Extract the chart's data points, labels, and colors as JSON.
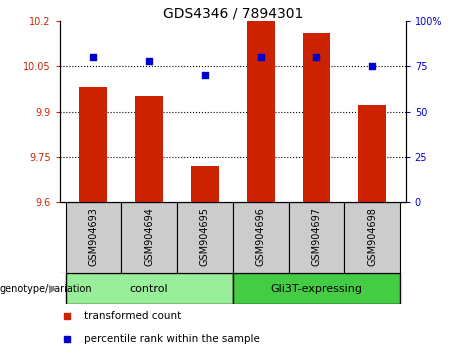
{
  "title": "GDS4346 / 7894301",
  "samples": [
    "GSM904693",
    "GSM904694",
    "GSM904695",
    "GSM904696",
    "GSM904697",
    "GSM904698"
  ],
  "transformed_counts": [
    9.98,
    9.95,
    9.72,
    10.2,
    10.16,
    9.92
  ],
  "percentile_ranks": [
    80,
    78,
    70,
    80,
    80,
    75
  ],
  "ylim_left": [
    9.6,
    10.2
  ],
  "ylim_right": [
    0,
    100
  ],
  "yticks_left": [
    9.6,
    9.75,
    9.9,
    10.05,
    10.2
  ],
  "ytick_labels_left": [
    "9.6",
    "9.75",
    "9.9",
    "10.05",
    "10.2"
  ],
  "yticks_right": [
    0,
    25,
    50,
    75,
    100
  ],
  "ytick_labels_right": [
    "0",
    "25",
    "50",
    "75",
    "100%"
  ],
  "grid_lines": [
    10.05,
    9.9,
    9.75
  ],
  "bar_color": "#CC2200",
  "dot_color": "#0000CC",
  "bar_width": 0.5,
  "groups": [
    {
      "label": "control",
      "indices": [
        0,
        1,
        2
      ],
      "color": "#99ee99"
    },
    {
      "label": "Gli3T-expressing",
      "indices": [
        3,
        4,
        5
      ],
      "color": "#44cc44"
    }
  ],
  "genotype_label": "genotype/variation",
  "genotype_arrow": "▶",
  "legend_items": [
    {
      "label": "transformed count",
      "color": "#CC2200"
    },
    {
      "label": "percentile rank within the sample",
      "color": "#0000CC"
    }
  ],
  "axis_color_left": "#CC2200",
  "axis_color_right": "#0000CC",
  "sample_bg_color": "#cccccc",
  "plot_bg": "#ffffff"
}
